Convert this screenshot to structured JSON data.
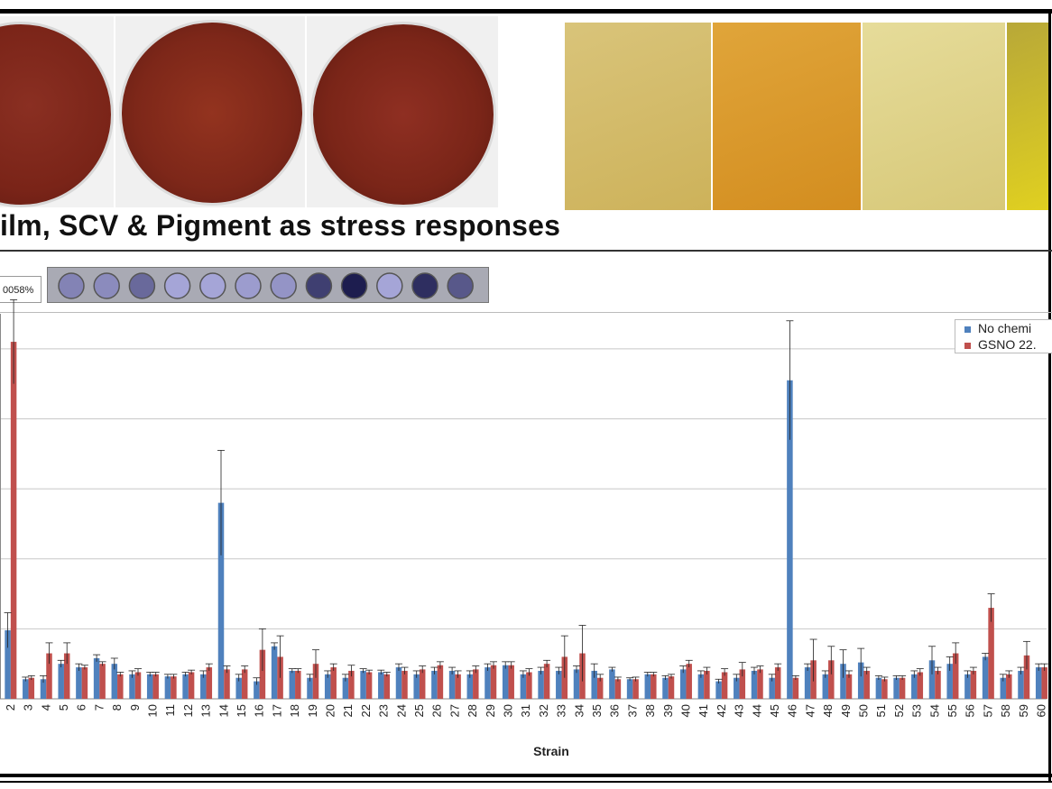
{
  "headline": "ilm, SCV & Pigment as stress responses",
  "percent_label": "0058%",
  "legend": {
    "items": [
      {
        "label": "No chemi",
        "color": "#4f81bd"
      },
      {
        "label": "GSNO 22.",
        "color": "#c0504d"
      }
    ]
  },
  "chart_data": {
    "type": "bar",
    "xlabel": "Strain",
    "ylabel": "",
    "ylim": [
      0,
      5.5
    ],
    "grid": true,
    "categories": [
      "2",
      "3",
      "4",
      "5",
      "6",
      "7",
      "8",
      "9",
      "10",
      "11",
      "12",
      "13",
      "14",
      "15",
      "16",
      "17",
      "18",
      "19",
      "20",
      "21",
      "22",
      "23",
      "24",
      "25",
      "26",
      "27",
      "28",
      "29",
      "30",
      "31",
      "32",
      "33",
      "34",
      "35",
      "36",
      "37",
      "38",
      "39",
      "40",
      "41",
      "42",
      "43",
      "44",
      "45",
      "46",
      "47",
      "48",
      "49",
      "50",
      "51",
      "52",
      "53",
      "54",
      "55",
      "56",
      "57",
      "58",
      "59",
      "60"
    ],
    "series": [
      {
        "name": "No chemi",
        "color": "#4f81bd",
        "values": [
          0.98,
          0.28,
          0.28,
          0.5,
          0.45,
          0.58,
          0.5,
          0.35,
          0.35,
          0.32,
          0.35,
          0.35,
          2.8,
          0.3,
          0.25,
          0.75,
          0.4,
          0.3,
          0.35,
          0.3,
          0.4,
          0.38,
          0.45,
          0.35,
          0.4,
          0.4,
          0.35,
          0.45,
          0.48,
          0.35,
          0.4,
          0.4,
          0.42,
          0.4,
          0.42,
          0.28,
          0.35,
          0.3,
          0.42,
          0.35,
          0.25,
          0.3,
          0.4,
          0.3,
          4.55,
          0.45,
          0.35,
          0.5,
          0.52,
          0.3,
          0.3,
          0.35,
          0.55,
          0.5,
          0.35,
          0.6,
          0.3,
          0.4,
          0.45
        ],
        "errors": [
          0.25,
          0.03,
          0.05,
          0.05,
          0.05,
          0.05,
          0.08,
          0.05,
          0.03,
          0.03,
          0.03,
          0.05,
          0.75,
          0.05,
          0.05,
          0.05,
          0.03,
          0.05,
          0.05,
          0.05,
          0.03,
          0.03,
          0.05,
          0.05,
          0.05,
          0.05,
          0.05,
          0.05,
          0.05,
          0.05,
          0.05,
          0.05,
          0.05,
          0.1,
          0.03,
          0.02,
          0.03,
          0.03,
          0.05,
          0.05,
          0.03,
          0.05,
          0.05,
          0.05,
          0.85,
          0.05,
          0.05,
          0.2,
          0.2,
          0.03,
          0.03,
          0.05,
          0.2,
          0.1,
          0.05,
          0.05,
          0.05,
          0.05,
          0.05
        ]
      },
      {
        "name": "GSNO 22.",
        "color": "#c0504d",
        "values": [
          5.1,
          0.3,
          0.65,
          0.65,
          0.45,
          0.5,
          0.35,
          0.38,
          0.35,
          0.32,
          0.38,
          0.45,
          0.42,
          0.42,
          0.7,
          0.6,
          0.4,
          0.5,
          0.45,
          0.4,
          0.38,
          0.35,
          0.4,
          0.42,
          0.48,
          0.35,
          0.42,
          0.48,
          0.48,
          0.38,
          0.5,
          0.6,
          0.65,
          0.3,
          0.28,
          0.28,
          0.35,
          0.32,
          0.5,
          0.4,
          0.38,
          0.42,
          0.42,
          0.45,
          0.3,
          0.55,
          0.55,
          0.35,
          0.4,
          0.28,
          0.3,
          0.38,
          0.4,
          0.65,
          0.4,
          1.3,
          0.35,
          0.62,
          0.45
        ],
        "errors": [
          0.6,
          0.03,
          0.15,
          0.15,
          0.03,
          0.03,
          0.03,
          0.05,
          0.03,
          0.03,
          0.03,
          0.05,
          0.05,
          0.05,
          0.3,
          0.3,
          0.03,
          0.2,
          0.05,
          0.08,
          0.03,
          0.03,
          0.05,
          0.05,
          0.05,
          0.05,
          0.05,
          0.05,
          0.05,
          0.05,
          0.05,
          0.3,
          0.4,
          0.05,
          0.03,
          0.03,
          0.03,
          0.03,
          0.05,
          0.05,
          0.05,
          0.1,
          0.05,
          0.05,
          0.03,
          0.3,
          0.2,
          0.05,
          0.05,
          0.03,
          0.03,
          0.05,
          0.05,
          0.15,
          0.05,
          0.2,
          0.05,
          0.2,
          0.05
        ]
      }
    ]
  }
}
